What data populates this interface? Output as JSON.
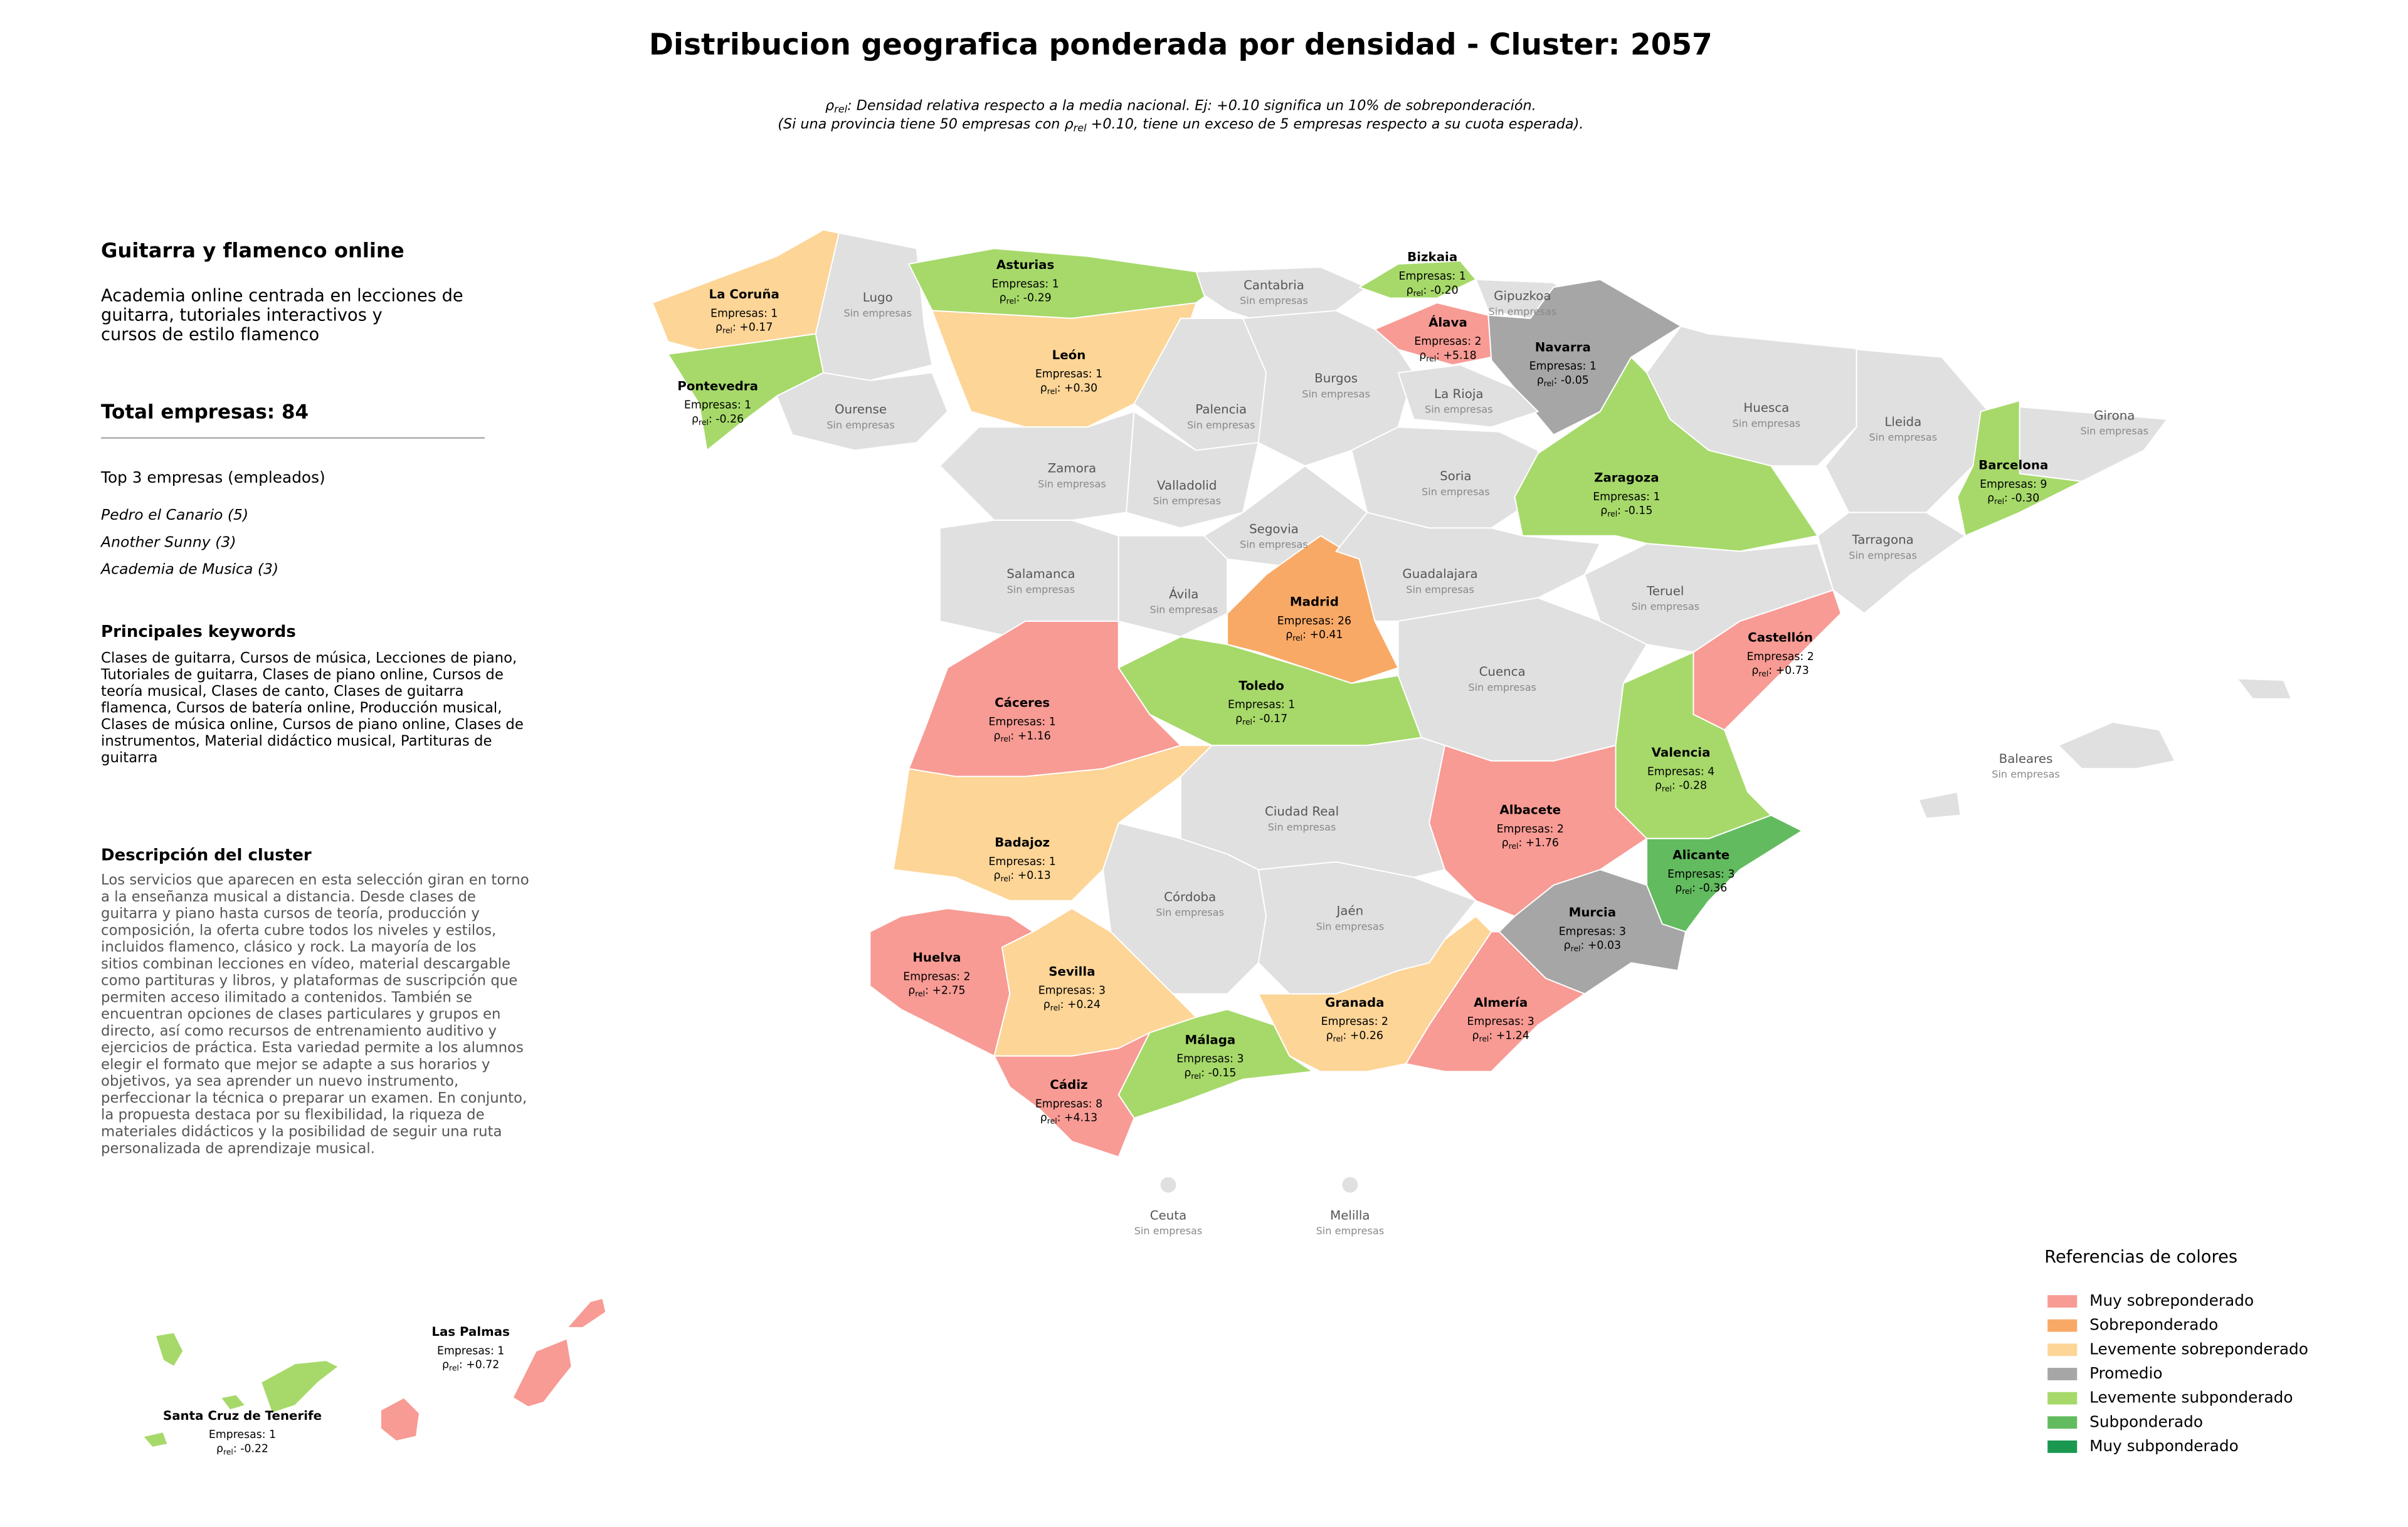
{
  "title": "Distribucion geografica ponderada por densidad - Cluster: 2057",
  "rho_symbol": "ρ",
  "rho_subscript": "rel",
  "subtitle": [
    [
      {
        "t": "ρ"
      },
      {
        "sub": "rel"
      },
      {
        "t": ": Densidad relativa respecto a la media nacional. Ej: +0.10 significa un 10% de sobreponderación."
      }
    ],
    [
      {
        "t": "(Si una provincia tiene 50 empresas con "
      },
      {
        "t": "ρ"
      },
      {
        "sub": "rel"
      },
      {
        "t": " +0.10, tiene un exceso de 5 empresas respecto a su cuota esperada)."
      }
    ]
  ],
  "sidebar": {
    "heading": "Guitarra y flamenco online",
    "description": [
      "Academia online centrada en lecciones de",
      "guitarra, tutoriales interactivos y",
      "cursos de estilo flamenco"
    ],
    "total": "Total empresas: 84",
    "top_title": "Top 3 empresas (empleados)",
    "top": [
      "Pedro el Canario (5)",
      "Another Sunny (3)",
      "Academia de Musica (3)"
    ],
    "keywords_title": "Principales keywords",
    "keywords": [
      "Clases de guitarra, Cursos de música, Lecciones de piano,",
      "Tutoriales de guitarra, Clases de piano online, Cursos de",
      "teoría musical, Clases de canto, Clases de guitarra",
      "flamenca, Cursos de batería online, Producción musical,",
      "Clases de música online, Cursos de piano online, Clases de",
      "instrumentos, Material didáctico musical, Partituras de",
      "guitarra"
    ],
    "cluster_title": "Descripción del cluster",
    "cluster_text": [
      "Los servicios que aparecen en esta selección giran en torno",
      "a la enseñanza musical a distancia. Desde clases de",
      "guitarra y piano hasta cursos de teoría, producción y",
      "composición, la oferta cubre todos los niveles y estilos,",
      "incluidos flamenco, clásico y rock. La mayoría de los",
      "sitios combinan lecciones en vídeo, material descargable",
      "como partituras y libros, y plataformas de suscripción que",
      "permiten acceso ilimitado a contenidos. También se",
      "encuentran opciones de clases particulares y grupos en",
      "directo, así como recursos de entrenamiento auditivo y",
      "ejercicios de práctica. Esta variedad permite a los alumnos",
      "elegir el formato que mejor se adapte a sus horarios y",
      "objetivos, ya sea aprender un nuevo instrumento,",
      "perfeccionar la técnica o preparar un examen. En conjunto,",
      "la propuesta destaca por su flexibilidad, la riqueza de",
      "materiales didácticos y la posibilidad de seguir una ruta",
      "personalizada de aprendizaje musical."
    ]
  },
  "map": {
    "no_data_color": "#e0e0e0",
    "provinces": [
      {
        "name": "La Coruña",
        "category": "Levemente sobreponderado",
        "empresas": "Empresas: 1",
        "rho": ": +0.17"
      },
      {
        "name": "Lugo",
        "note": "Sin empresas"
      },
      {
        "name": "Asturias",
        "category": "Levemente subponderado",
        "empresas": "Empresas: 1",
        "rho": ": -0.29"
      },
      {
        "name": "Cantabria",
        "note": "Sin empresas"
      },
      {
        "name": "Bizkaia",
        "category": "Levemente subponderado",
        "empresas": "Empresas: 1",
        "rho": ": -0.20"
      },
      {
        "name": "Gipuzkoa",
        "note": "Sin empresas"
      },
      {
        "name": "Álava",
        "category": "Muy sobreponderado",
        "empresas": "Empresas: 2",
        "rho": ": +5.18"
      },
      {
        "name": "Navarra",
        "category": "Promedio",
        "empresas": "Empresas: 1",
        "rho": ": -0.05"
      },
      {
        "name": "Pontevedra",
        "category": "Levemente subponderado",
        "empresas": "Empresas: 1",
        "rho": ": -0.26"
      },
      {
        "name": "Ourense",
        "note": "Sin empresas"
      },
      {
        "name": "León",
        "category": "Levemente sobreponderado",
        "empresas": "Empresas: 1",
        "rho": ": +0.30"
      },
      {
        "name": "Palencia",
        "note": "Sin empresas"
      },
      {
        "name": "Burgos",
        "note": "Sin empresas"
      },
      {
        "name": "La Rioja",
        "note": "Sin empresas"
      },
      {
        "name": "Huesca",
        "note": "Sin empresas"
      },
      {
        "name": "Lleida",
        "note": "Sin empresas"
      },
      {
        "name": "Girona",
        "note": "Sin empresas"
      },
      {
        "name": "Barcelona",
        "category": "Levemente subponderado",
        "empresas": "Empresas: 9",
        "rho": ": -0.30"
      },
      {
        "name": "Zamora",
        "note": "Sin empresas"
      },
      {
        "name": "Valladolid",
        "note": "Sin empresas"
      },
      {
        "name": "Soria",
        "note": "Sin empresas"
      },
      {
        "name": "Zaragoza",
        "category": "Levemente subponderado",
        "empresas": "Empresas: 1",
        "rho": ": -0.15"
      },
      {
        "name": "Segovia",
        "note": "Sin empresas"
      },
      {
        "name": "Tarragona",
        "note": "Sin empresas"
      },
      {
        "name": "Salamanca",
        "note": "Sin empresas"
      },
      {
        "name": "Ávila",
        "note": "Sin empresas"
      },
      {
        "name": "Madrid",
        "category": "Sobreponderado",
        "empresas": "Empresas: 26",
        "rho": ": +0.41"
      },
      {
        "name": "Guadalajara",
        "note": "Sin empresas"
      },
      {
        "name": "Teruel",
        "note": "Sin empresas"
      },
      {
        "name": "Castellón",
        "category": "Muy sobreponderado",
        "empresas": "Empresas: 2",
        "rho": ": +0.73"
      },
      {
        "name": "Cáceres",
        "category": "Muy sobreponderado",
        "empresas": "Empresas: 1",
        "rho": ": +1.16"
      },
      {
        "name": "Toledo",
        "category": "Levemente subponderado",
        "empresas": "Empresas: 1",
        "rho": ": -0.17"
      },
      {
        "name": "Cuenca",
        "note": "Sin empresas"
      },
      {
        "name": "Valencia",
        "category": "Levemente subponderado",
        "empresas": "Empresas: 4",
        "rho": ": -0.28"
      },
      {
        "name": "Baleares",
        "note": "Sin empresas"
      },
      {
        "name": "Ciudad Real",
        "note": "Sin empresas"
      },
      {
        "name": "Albacete",
        "category": "Muy sobreponderado",
        "empresas": "Empresas: 2",
        "rho": ": +1.76"
      },
      {
        "name": "Badajoz",
        "category": "Levemente sobreponderado",
        "empresas": "Empresas: 1",
        "rho": ": +0.13"
      },
      {
        "name": "Alicante",
        "category": "Subponderado",
        "empresas": "Empresas: 3",
        "rho": ": -0.36"
      },
      {
        "name": "Córdoba",
        "note": "Sin empresas"
      },
      {
        "name": "Jaén",
        "note": "Sin empresas"
      },
      {
        "name": "Murcia",
        "category": "Promedio",
        "empresas": "Empresas: 3",
        "rho": ": +0.03"
      },
      {
        "name": "Huelva",
        "category": "Muy sobreponderado",
        "empresas": "Empresas: 2",
        "rho": ": +2.75"
      },
      {
        "name": "Sevilla",
        "category": "Levemente sobreponderado",
        "empresas": "Empresas: 3",
        "rho": ": +0.24"
      },
      {
        "name": "Granada",
        "category": "Levemente sobreponderado",
        "empresas": "Empresas: 2",
        "rho": ": +0.26"
      },
      {
        "name": "Almería",
        "category": "Muy sobreponderado",
        "empresas": "Empresas: 3",
        "rho": ": +1.24"
      },
      {
        "name": "Málaga",
        "category": "Levemente subponderado",
        "empresas": "Empresas: 3",
        "rho": ": -0.15"
      },
      {
        "name": "Cádiz",
        "category": "Muy sobreponderado",
        "empresas": "Empresas: 8",
        "rho": ": +4.13"
      },
      {
        "name": "Ceuta",
        "note": "Sin empresas"
      },
      {
        "name": "Melilla",
        "note": "Sin empresas"
      },
      {
        "name": "Las Palmas",
        "category": "Muy sobreponderado",
        "empresas": "Empresas: 1",
        "rho": ": +0.72"
      },
      {
        "name": "Santa Cruz de Tenerife",
        "category": "Levemente subponderado",
        "empresas": "Empresas: 1",
        "rho": ": -0.22"
      }
    ]
  },
  "legend": {
    "title": "Referencias de colores",
    "items": [
      {
        "name": "Muy sobreponderado",
        "color": "#f79b94"
      },
      {
        "name": "Sobreponderado",
        "color": "#f9a966"
      },
      {
        "name": "Levemente sobreponderado",
        "color": "#fdd597"
      },
      {
        "name": "Promedio",
        "color": "#a6a6a6"
      },
      {
        "name": "Levemente subponderado",
        "color": "#a6d96a"
      },
      {
        "name": "Subponderado",
        "color": "#63bb5f"
      },
      {
        "name": "Muy subponderado",
        "color": "#1a9850"
      }
    ]
  }
}
